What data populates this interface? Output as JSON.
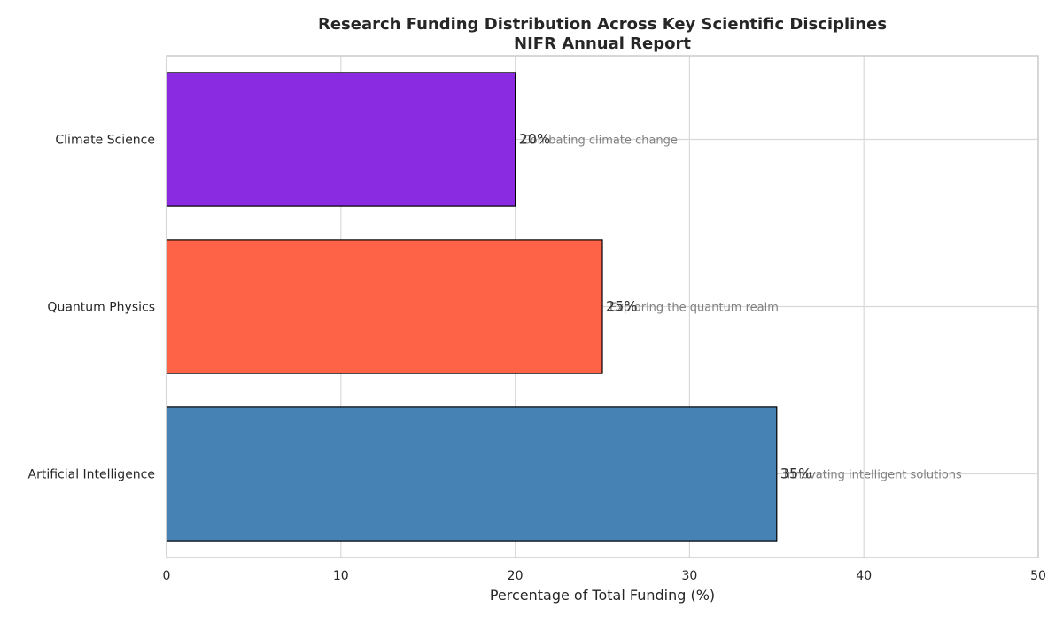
{
  "chart_data": {
    "type": "bar",
    "orientation": "horizontal",
    "title": "Research Funding Distribution Across Key Scientific Disciplines",
    "subtitle": "NIFR Annual Report",
    "xlabel": "Percentage of Total Funding (%)",
    "ylabel": "",
    "xlim": [
      0,
      50
    ],
    "xticks": [
      "0",
      "10",
      "20",
      "30",
      "40",
      "50"
    ],
    "grid": true,
    "categories": [
      "Climate Science",
      "Quantum Physics",
      "Artificial Intelligence"
    ],
    "values": [
      20,
      25,
      35
    ],
    "value_labels": [
      "20%",
      "25%",
      "35%"
    ],
    "annotations": [
      "Combating climate change",
      "Exploring the quantum realm",
      "Innovating intelligent solutions"
    ],
    "colors": [
      "#8a2be2",
      "#ff6347",
      "#4682b4"
    ]
  }
}
